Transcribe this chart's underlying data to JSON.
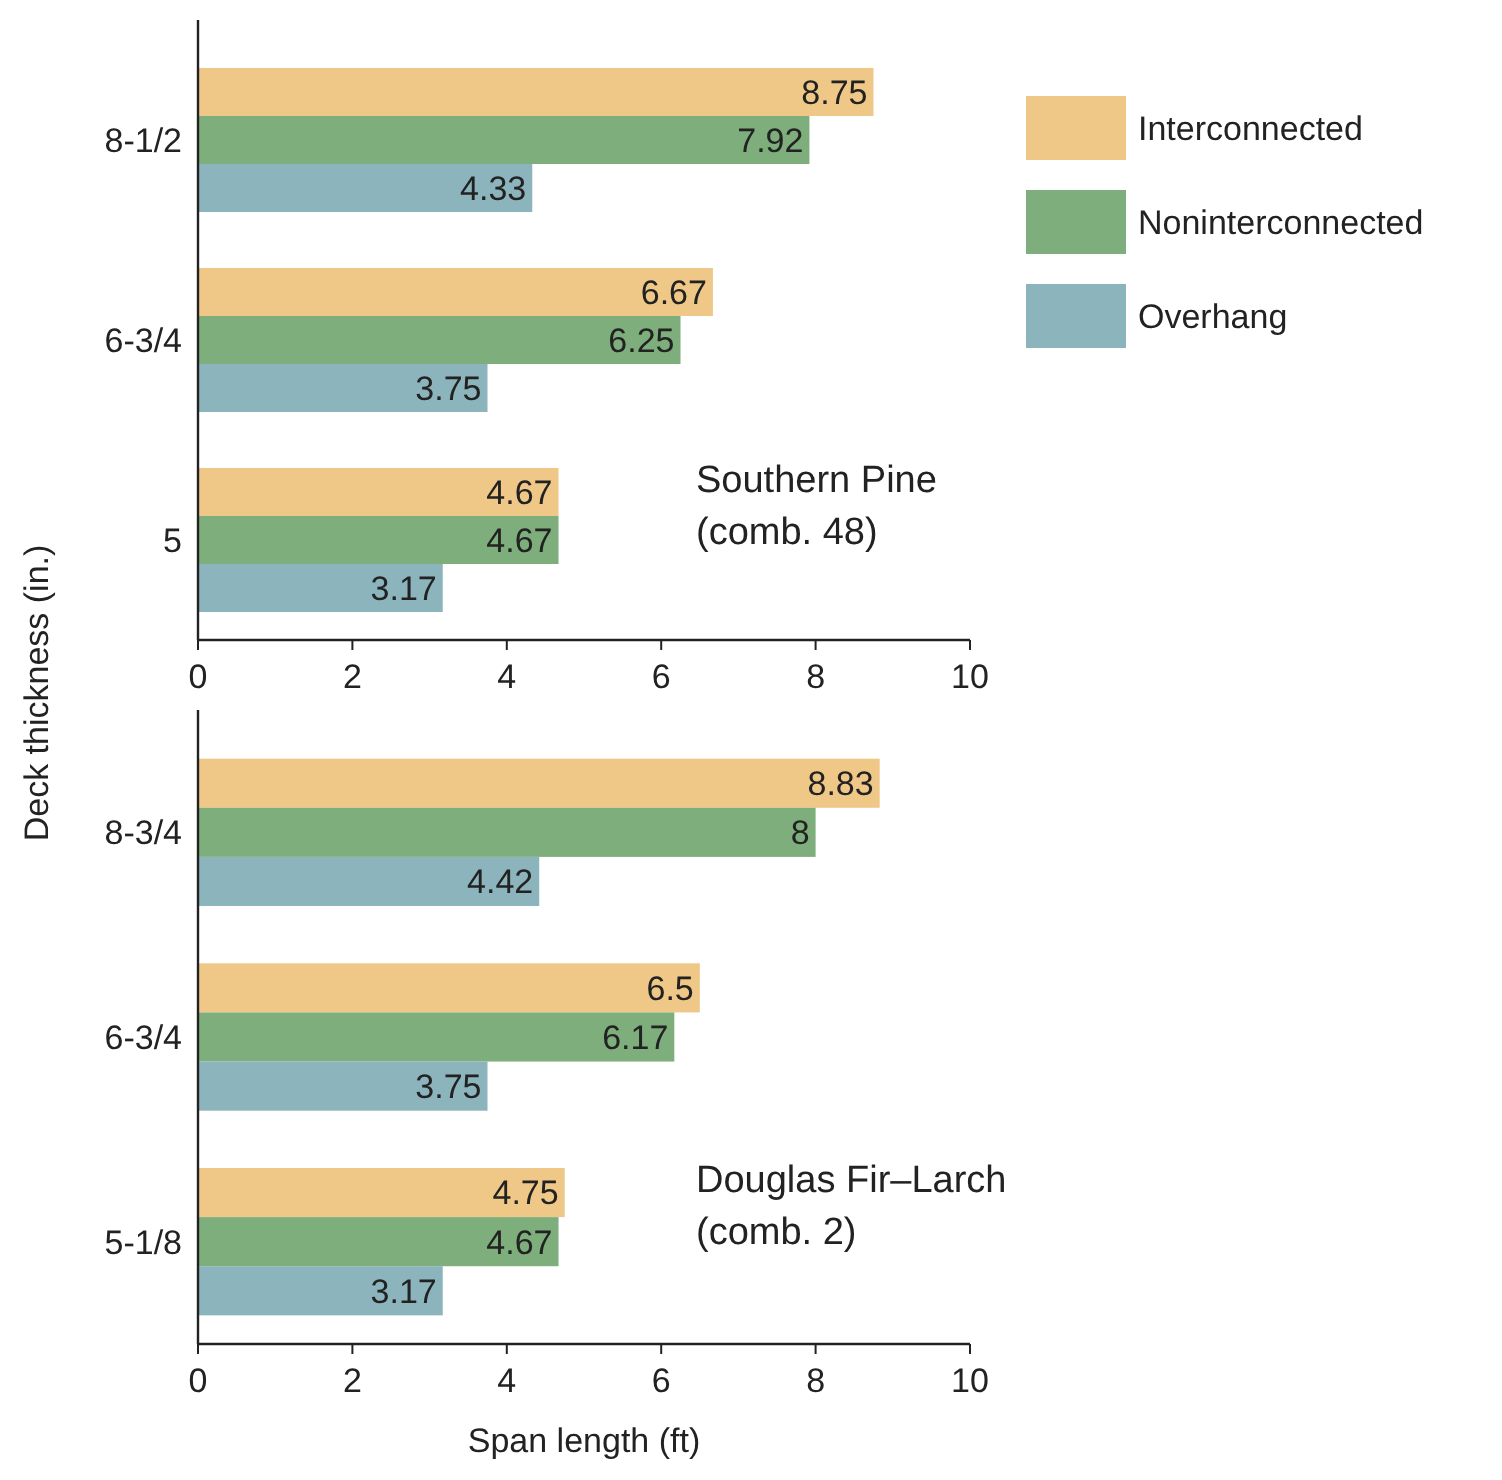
{
  "chart_data": [
    {
      "type": "bar",
      "orientation": "horizontal",
      "ylabel": "Deck thickness (in.)",
      "categories": [
        "8-1/2",
        "6-3/4",
        "5"
      ],
      "series": [
        {
          "name": "Interconnected",
          "color": "#efc888",
          "values": [
            8.75,
            6.67,
            4.67
          ]
        },
        {
          "name": "Noninterconnected",
          "color": "#7dae7c",
          "values": [
            7.92,
            6.25,
            4.67
          ]
        },
        {
          "name": "Overhang",
          "color": "#8cb4bc",
          "values": [
            4.33,
            3.75,
            3.17
          ]
        }
      ],
      "xlim": [
        0,
        10
      ],
      "xticks": [
        0,
        2,
        4,
        6,
        8,
        10
      ],
      "data_labels": true,
      "legend": "right",
      "grid": false,
      "annotations": [
        "Southern Pine\n(comb. 48)"
      ]
    },
    {
      "type": "bar",
      "orientation": "horizontal",
      "xlabel": "Span length (ft)",
      "categories": [
        "8-3/4",
        "6-3/4",
        "5-1/8"
      ],
      "series": [
        {
          "color": "#efc888",
          "values": [
            8.83,
            6.5,
            4.75
          ]
        },
        {
          "color": "#7dae7c",
          "values": [
            8,
            6.17,
            4.67
          ]
        },
        {
          "color": "#8cb4bc",
          "values": [
            4.42,
            3.75,
            3.17
          ]
        }
      ],
      "xlim": [
        0,
        10
      ],
      "xticks": [
        0,
        2,
        4,
        6,
        8,
        10
      ],
      "data_labels": true,
      "legend": false,
      "grid": false,
      "annotations": [
        "Douglas Fir–Larch\n(comb. 2)"
      ]
    }
  ]
}
